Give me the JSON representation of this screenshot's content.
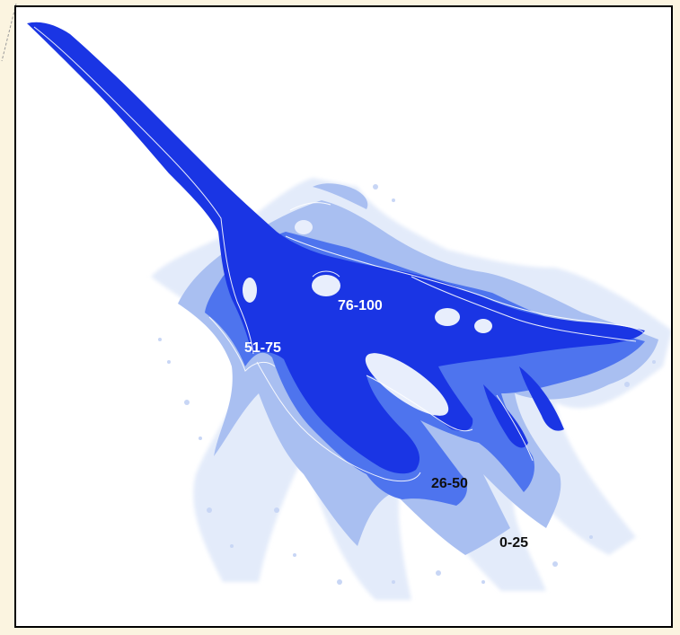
{
  "map": {
    "zone_labels": [
      {
        "id": "zone-76-100",
        "text": "76-100",
        "tone": "light"
      },
      {
        "id": "zone-51-75",
        "text": "51-75",
        "tone": "light"
      },
      {
        "id": "zone-26-50",
        "text": "26-50",
        "tone": "dark"
      },
      {
        "id": "zone-0-25",
        "text": "0-25",
        "tone": "dark"
      }
    ],
    "colors": {
      "background": "#fbf4e0",
      "frame": "#000000",
      "zone_0_25": "#dfe8f9",
      "zone_26_50": "#a8bff0",
      "zone_51_75": "#5a7ff0",
      "zone_76_100": "#1a3ae6",
      "contour": "#ffffff"
    }
  }
}
